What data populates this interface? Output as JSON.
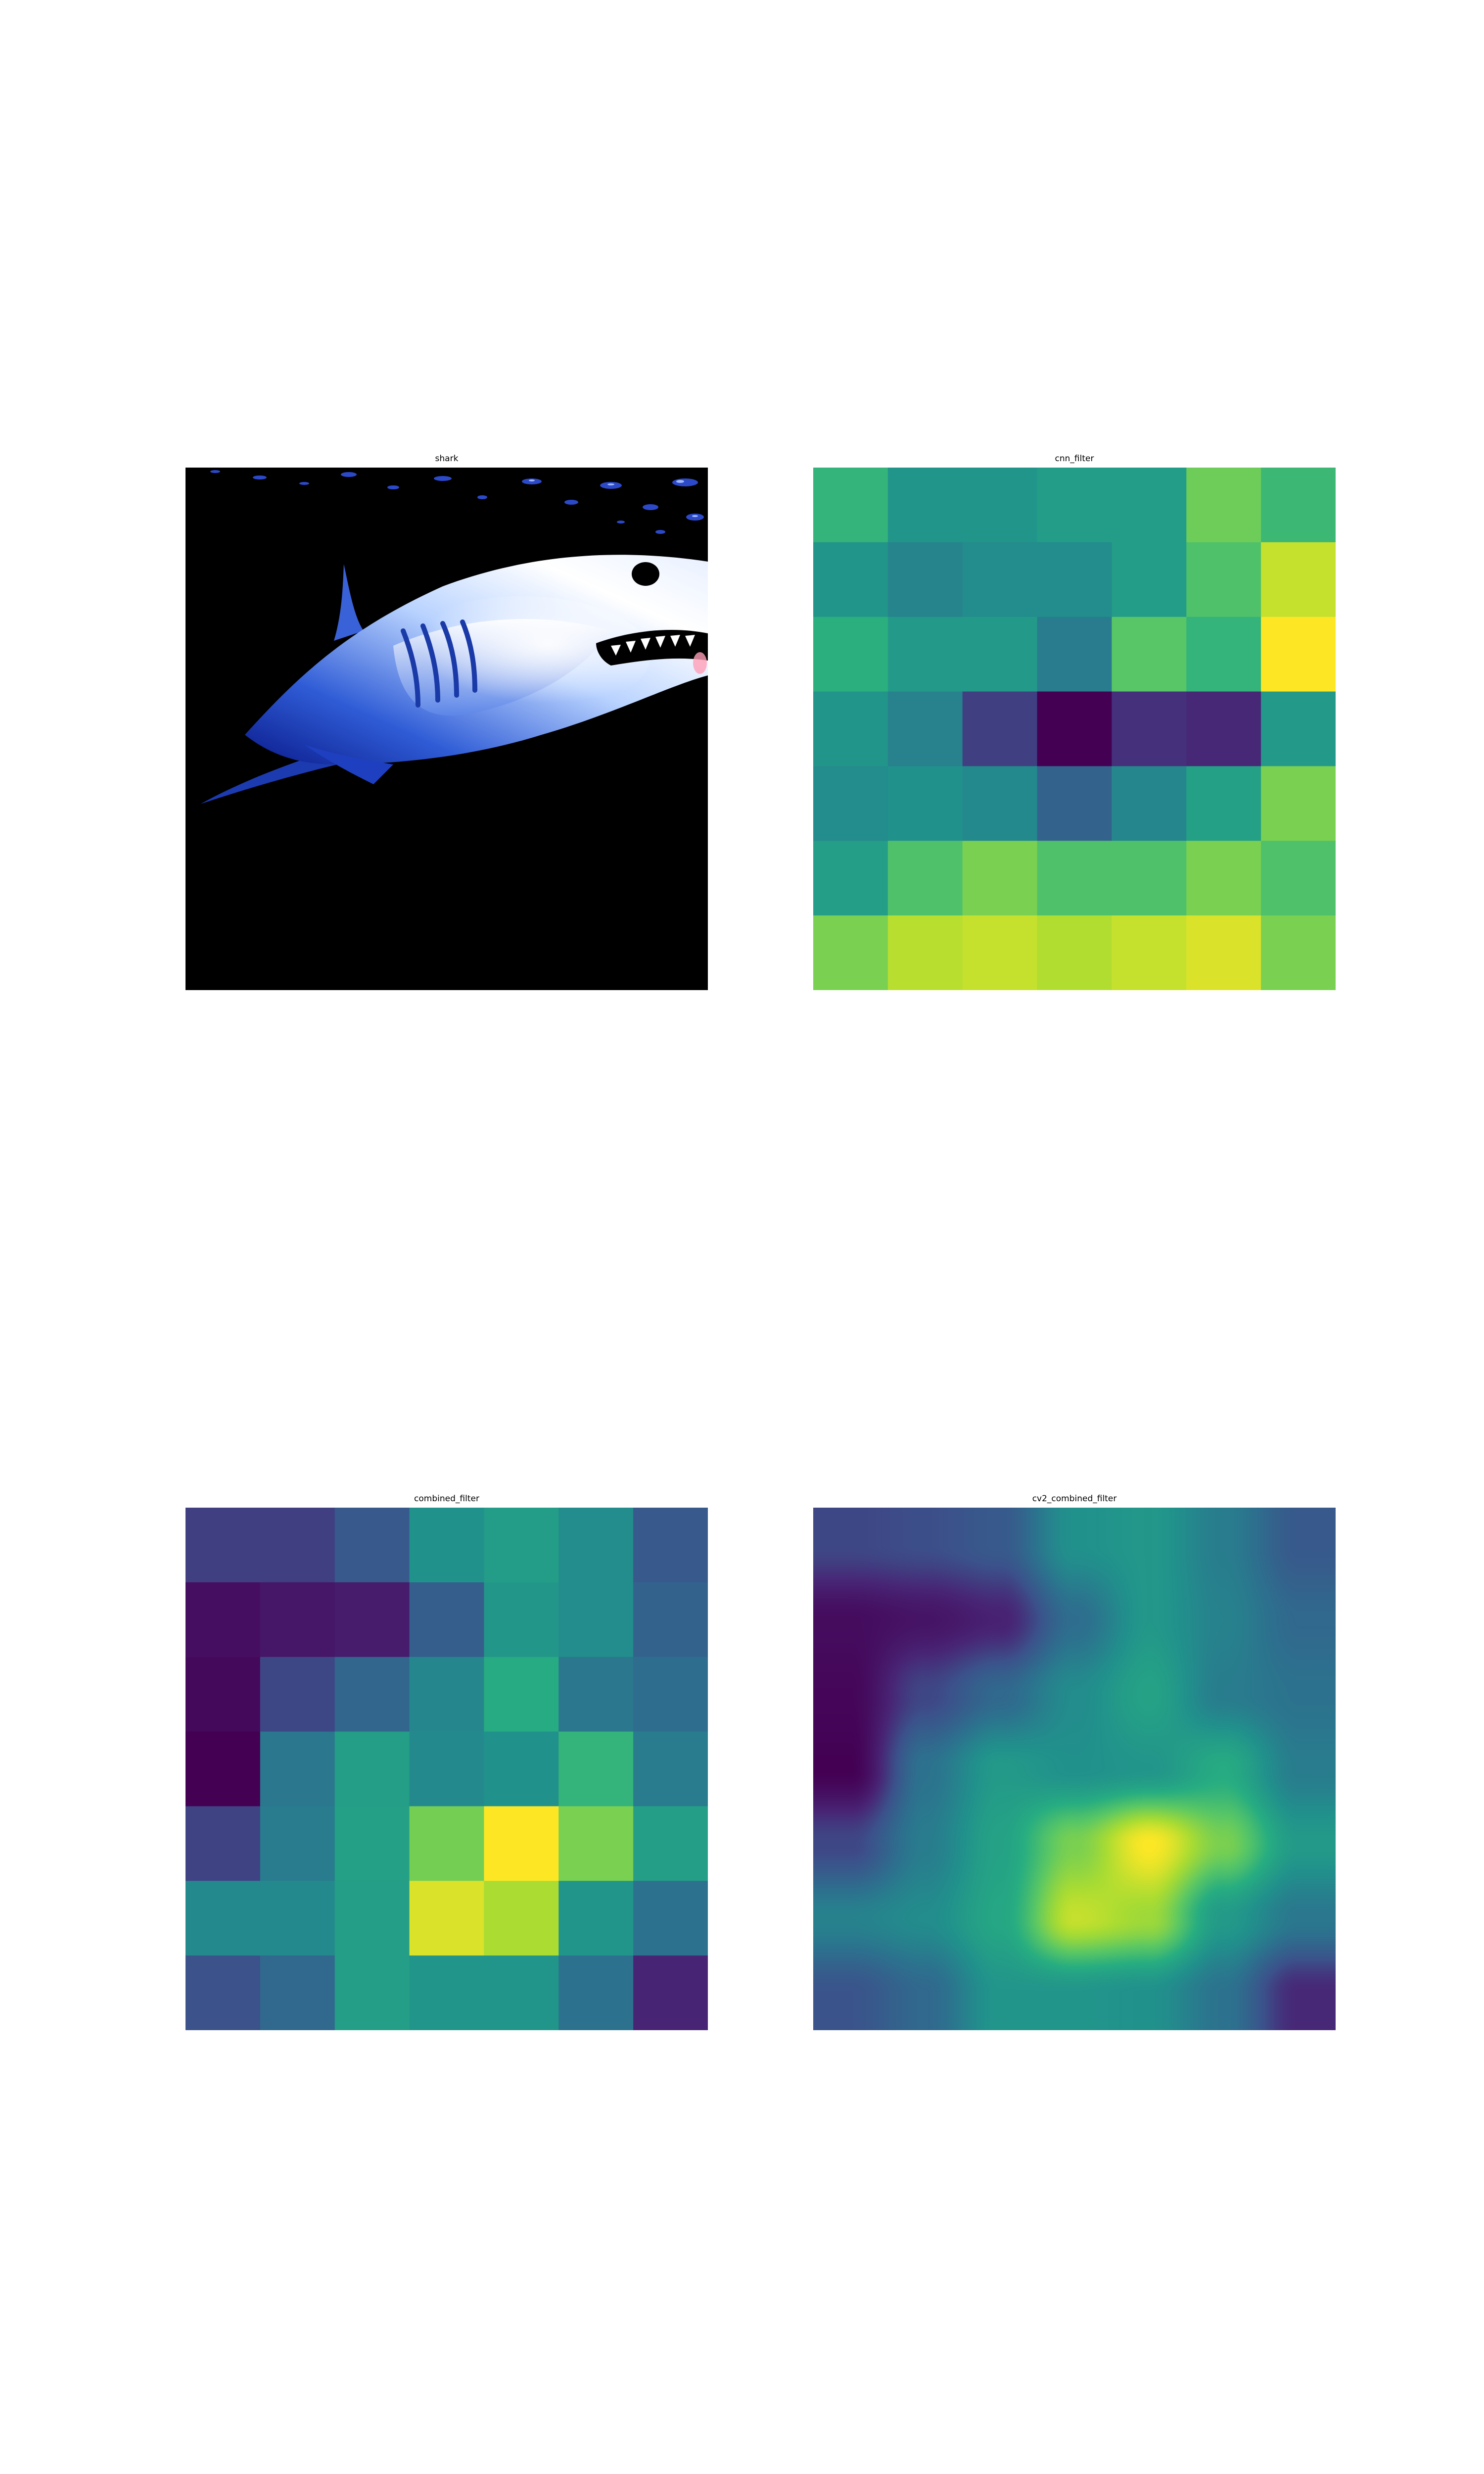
{
  "chart_data": [
    {
      "type": "image",
      "title": "shark",
      "image": "shark-photo"
    },
    {
      "type": "heatmap",
      "title": "cnn_filter",
      "colormap": "viridis",
      "interpolation": "nearest",
      "rows": 7,
      "cols": 7,
      "values": [
        [
          0.66,
          0.52,
          0.52,
          0.55,
          0.55,
          0.78,
          0.68
        ],
        [
          0.52,
          0.45,
          0.48,
          0.48,
          0.55,
          0.72,
          0.92
        ],
        [
          0.64,
          0.54,
          0.54,
          0.42,
          0.74,
          0.66,
          1.0
        ],
        [
          0.52,
          0.44,
          0.2,
          0.0,
          0.16,
          0.14,
          0.54
        ],
        [
          0.48,
          0.5,
          0.47,
          0.32,
          0.46,
          0.57,
          0.8
        ],
        [
          0.56,
          0.72,
          0.8,
          0.72,
          0.72,
          0.8,
          0.72
        ],
        [
          0.8,
          0.9,
          0.92,
          0.89,
          0.92,
          0.95,
          0.8
        ]
      ]
    },
    {
      "type": "heatmap",
      "title": "combined_filter",
      "colormap": "viridis",
      "interpolation": "nearest",
      "rows": 7,
      "cols": 7,
      "values": [
        [
          0.2,
          0.2,
          0.28,
          0.5,
          0.55,
          0.48,
          0.28
        ],
        [
          0.05,
          0.08,
          0.1,
          0.3,
          0.53,
          0.48,
          0.32
        ],
        [
          0.03,
          0.22,
          0.33,
          0.46,
          0.62,
          0.4,
          0.36
        ],
        [
          0.0,
          0.4,
          0.56,
          0.47,
          0.5,
          0.66,
          0.42
        ],
        [
          0.21,
          0.42,
          0.57,
          0.79,
          1.0,
          0.8,
          0.56
        ],
        [
          0.47,
          0.47,
          0.56,
          0.95,
          0.88,
          0.52,
          0.38
        ],
        [
          0.25,
          0.34,
          0.56,
          0.52,
          0.52,
          0.38,
          0.13
        ]
      ]
    },
    {
      "type": "heatmap",
      "title": "cv2_combined_filter",
      "colormap": "viridis",
      "interpolation": "bilinear",
      "rows": 7,
      "cols": 7,
      "values": [
        [
          0.22,
          0.24,
          0.28,
          0.5,
          0.53,
          0.42,
          0.28
        ],
        [
          0.04,
          0.07,
          0.12,
          0.36,
          0.53,
          0.44,
          0.34
        ],
        [
          0.02,
          0.22,
          0.34,
          0.48,
          0.58,
          0.42,
          0.38
        ],
        [
          0.0,
          0.38,
          0.54,
          0.5,
          0.52,
          0.62,
          0.42
        ],
        [
          0.22,
          0.42,
          0.58,
          0.8,
          1.0,
          0.8,
          0.54
        ],
        [
          0.44,
          0.48,
          0.6,
          0.92,
          0.86,
          0.54,
          0.4
        ],
        [
          0.26,
          0.34,
          0.52,
          0.52,
          0.5,
          0.38,
          0.14
        ]
      ]
    }
  ]
}
